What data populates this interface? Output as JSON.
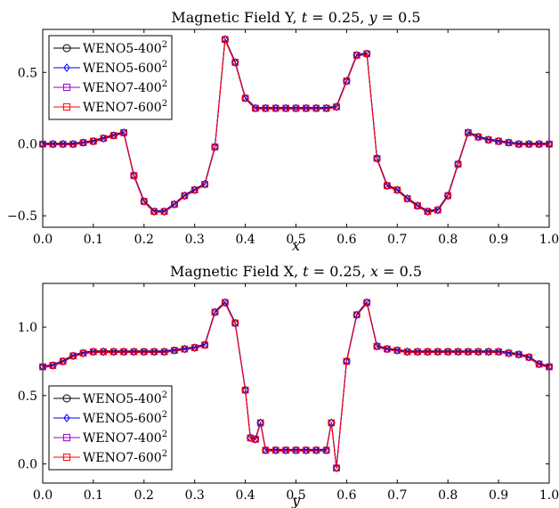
{
  "chart_data": [
    {
      "type": "line",
      "title": "Magnetic Field Y, t = 0.25, y = 0.5",
      "title_parts": {
        "prefix": "Magnetic Field Y, ",
        "var1": "t",
        "eq1": " = 0.25, ",
        "var2": "y",
        "eq2": " = 0.5"
      },
      "xlabel": "x",
      "ylabel": "",
      "xlim": [
        0,
        1
      ],
      "ylim": [
        -0.58,
        0.8
      ],
      "xticks": [
        "0.0",
        "0.1",
        "0.2",
        "0.3",
        "0.4",
        "0.5",
        "0.6",
        "0.7",
        "0.8",
        "0.9",
        "1.0"
      ],
      "yticks": [
        "−0.5",
        "0.0",
        "0.5"
      ],
      "ytick_values": [
        -0.5,
        0.0,
        0.5
      ],
      "legend_position": "top-left",
      "grid": false,
      "x": [
        0.0,
        0.02,
        0.04,
        0.06,
        0.08,
        0.1,
        0.12,
        0.14,
        0.16,
        0.18,
        0.2,
        0.22,
        0.24,
        0.26,
        0.28,
        0.3,
        0.32,
        0.34,
        0.36,
        0.38,
        0.4,
        0.42,
        0.44,
        0.46,
        0.48,
        0.5,
        0.52,
        0.54,
        0.56,
        0.58,
        0.6,
        0.62,
        0.64,
        0.66,
        0.68,
        0.7,
        0.72,
        0.74,
        0.76,
        0.78,
        0.8,
        0.82,
        0.84,
        0.86,
        0.88,
        0.9,
        0.92,
        0.94,
        0.96,
        0.98,
        1.0
      ],
      "y": [
        0.0,
        0.0,
        0.0,
        0.0,
        0.01,
        0.02,
        0.04,
        0.06,
        0.08,
        -0.22,
        -0.4,
        -0.47,
        -0.47,
        -0.42,
        -0.36,
        -0.32,
        -0.28,
        -0.02,
        0.73,
        0.57,
        0.32,
        0.25,
        0.25,
        0.25,
        0.25,
        0.25,
        0.25,
        0.25,
        0.25,
        0.26,
        0.44,
        0.62,
        0.63,
        -0.1,
        -0.29,
        -0.32,
        -0.38,
        -0.43,
        -0.47,
        -0.46,
        -0.36,
        -0.14,
        0.08,
        0.05,
        0.03,
        0.02,
        0.01,
        0.0,
        0.0,
        0.0,
        0.0
      ],
      "series": [
        {
          "name": "WENO5-400",
          "exp": "2",
          "color": "#000000",
          "marker": "circle"
        },
        {
          "name": "WENO5-600",
          "exp": "2",
          "color": "#0000ff",
          "marker": "diamond"
        },
        {
          "name": "WENO7-400",
          "exp": "2",
          "color": "#9900cc",
          "marker": "square"
        },
        {
          "name": "WENO7-600",
          "exp": "2",
          "color": "#ff0000",
          "marker": "square"
        }
      ]
    },
    {
      "type": "line",
      "title": "Magnetic Field X, t = 0.25, x = 0.5",
      "title_parts": {
        "prefix": "Magnetic Field X, ",
        "var1": "t",
        "eq1": " = 0.25, ",
        "var2": "x",
        "eq2": " = 0.5"
      },
      "xlabel": "y",
      "ylabel": "",
      "xlim": [
        0,
        1
      ],
      "ylim": [
        -0.14,
        1.32
      ],
      "xticks": [
        "0.0",
        "0.1",
        "0.2",
        "0.3",
        "0.4",
        "0.5",
        "0.6",
        "0.7",
        "0.8",
        "0.9",
        "1.0"
      ],
      "yticks": [
        "0.0",
        "0.5",
        "1.0"
      ],
      "ytick_values": [
        0.0,
        0.5,
        1.0
      ],
      "legend_position": "bottom-left",
      "grid": false,
      "x": [
        0.0,
        0.02,
        0.04,
        0.06,
        0.08,
        0.1,
        0.12,
        0.14,
        0.16,
        0.18,
        0.2,
        0.22,
        0.24,
        0.26,
        0.28,
        0.3,
        0.32,
        0.34,
        0.36,
        0.38,
        0.4,
        0.41,
        0.42,
        0.43,
        0.44,
        0.46,
        0.48,
        0.5,
        0.52,
        0.54,
        0.56,
        0.57,
        0.58,
        0.6,
        0.62,
        0.64,
        0.66,
        0.68,
        0.7,
        0.72,
        0.74,
        0.76,
        0.78,
        0.8,
        0.82,
        0.84,
        0.86,
        0.88,
        0.9,
        0.92,
        0.94,
        0.96,
        0.98,
        1.0
      ],
      "y": [
        0.71,
        0.72,
        0.75,
        0.79,
        0.81,
        0.82,
        0.82,
        0.82,
        0.82,
        0.82,
        0.82,
        0.82,
        0.82,
        0.83,
        0.84,
        0.85,
        0.87,
        1.11,
        1.18,
        1.03,
        0.54,
        0.19,
        0.18,
        0.3,
        0.1,
        0.1,
        0.1,
        0.1,
        0.1,
        0.1,
        0.1,
        0.3,
        -0.03,
        0.75,
        1.09,
        1.18,
        0.86,
        0.84,
        0.83,
        0.82,
        0.82,
        0.82,
        0.82,
        0.82,
        0.82,
        0.82,
        0.82,
        0.82,
        0.82,
        0.81,
        0.8,
        0.78,
        0.73,
        0.71
      ],
      "series": [
        {
          "name": "WENO5-400",
          "exp": "2",
          "color": "#000000",
          "marker": "circle"
        },
        {
          "name": "WENO5-600",
          "exp": "2",
          "color": "#0000ff",
          "marker": "diamond"
        },
        {
          "name": "WENO7-400",
          "exp": "2",
          "color": "#9900cc",
          "marker": "square"
        },
        {
          "name": "WENO7-600",
          "exp": "2",
          "color": "#ff0000",
          "marker": "square"
        }
      ]
    }
  ]
}
